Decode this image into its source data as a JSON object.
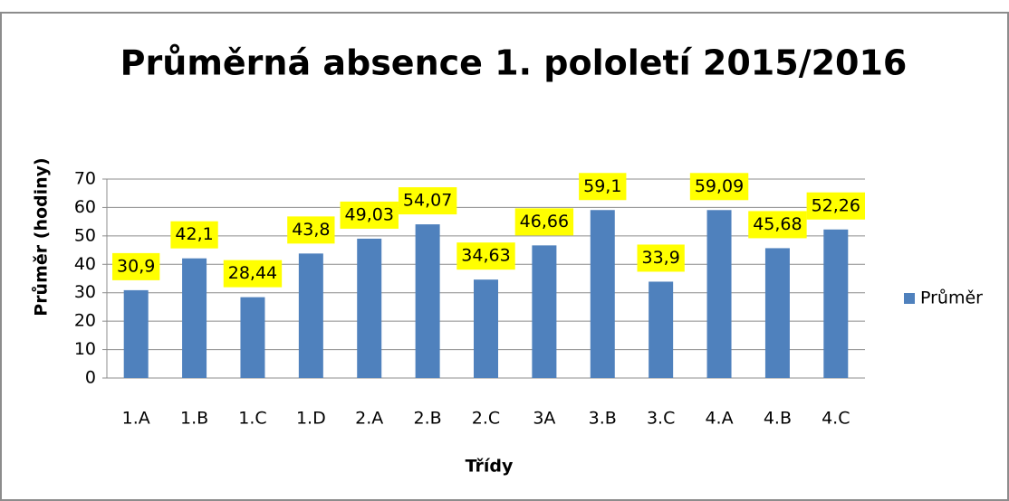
{
  "chart_data": {
    "type": "bar",
    "title": "Průměrná absence 1. pololetí 2015/2016",
    "x_label": "Třídy",
    "y_label": "Průměr (hodiny)",
    "categories": [
      "1.A",
      "1.B",
      "1.C",
      "1.D",
      "2.A",
      "2.B",
      "2.C",
      "3A",
      "3.B",
      "3.C",
      "4.A",
      "4.B",
      "4.C"
    ],
    "series": [
      {
        "name": "Průměr",
        "color": "#4f81bd",
        "values": [
          30.9,
          42.1,
          28.44,
          43.8,
          49.03,
          54.07,
          34.63,
          46.66,
          59.1,
          33.9,
          59.09,
          45.68,
          52.26
        ],
        "value_labels": [
          "30,9",
          "42,1",
          "28,44",
          "43,8",
          "49,03",
          "54,07",
          "34,63",
          "46,66",
          "59,1",
          "33,9",
          "59,09",
          "45,68",
          "52,26"
        ]
      }
    ],
    "ylim": [
      0,
      70
    ],
    "yticks": [
      0,
      10,
      20,
      30,
      40,
      50,
      60,
      70
    ],
    "grid": true,
    "legend": "right"
  }
}
